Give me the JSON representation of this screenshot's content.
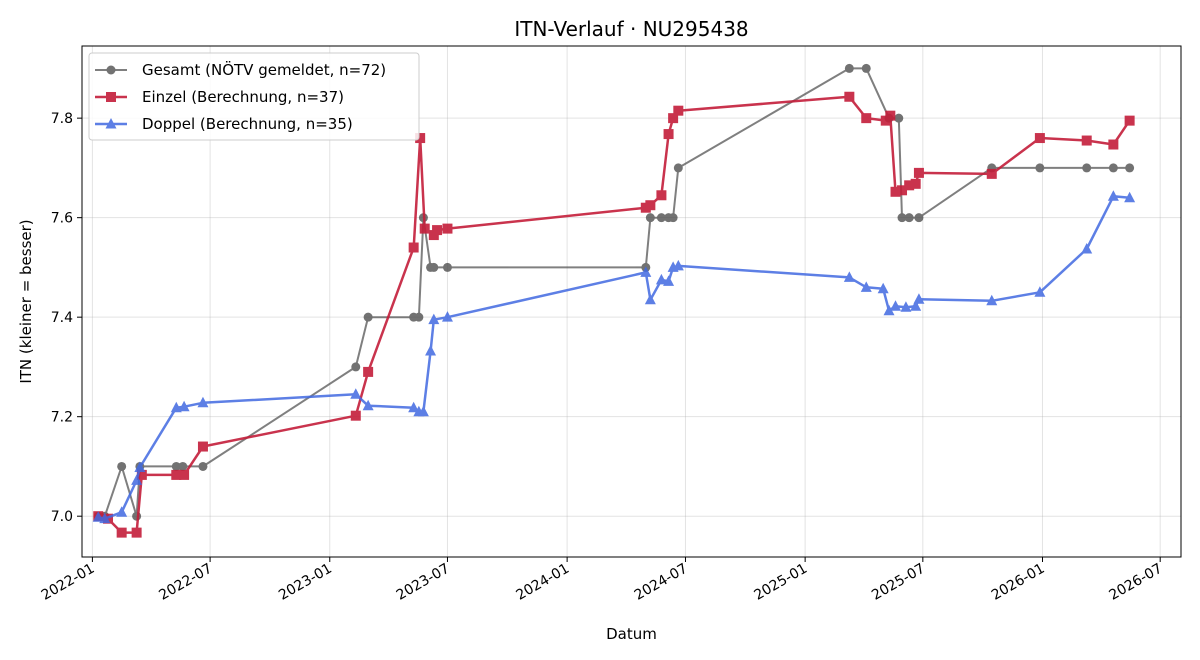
{
  "chart_data": {
    "type": "line",
    "title": "ITN-Verlauf · NU295438",
    "xlabel": "Datum",
    "ylabel": "ITN  (kleiner = besser)",
    "x_ticks": [
      "2022-01",
      "2022-07",
      "2023-01",
      "2023-07",
      "2024-01",
      "2024-07",
      "2025-01",
      "2025-07",
      "2026-01",
      "2026-07"
    ],
    "y_ticks": [
      "7.0",
      "7.2",
      "7.4",
      "7.6",
      "7.8"
    ],
    "xlim": [
      "2021-12-16",
      "2026-08-02"
    ],
    "ylim": [
      6.918,
      7.945
    ],
    "grid": true,
    "legend_position": "top-left",
    "series": [
      {
        "name": "Gesamt (NÖTV gemeldet, n=72)",
        "color": "#555555",
        "marker": "circle",
        "points": [
          [
            "2022-01-10",
            7.0
          ],
          [
            "2022-01-20",
            7.0
          ],
          [
            "2022-02-15",
            7.1
          ],
          [
            "2022-03-10",
            7.0
          ],
          [
            "2022-03-15",
            7.1
          ],
          [
            "2022-05-10",
            7.1
          ],
          [
            "2022-05-20",
            7.1
          ],
          [
            "2022-06-20",
            7.1
          ],
          [
            "2023-02-10",
            7.3
          ],
          [
            "2023-03-01",
            7.4
          ],
          [
            "2023-05-10",
            7.4
          ],
          [
            "2023-05-18",
            7.4
          ],
          [
            "2023-05-25",
            7.6
          ],
          [
            "2023-06-05",
            7.5
          ],
          [
            "2023-06-10",
            7.5
          ],
          [
            "2023-07-01",
            7.5
          ],
          [
            "2024-05-01",
            7.5
          ],
          [
            "2024-05-08",
            7.6
          ],
          [
            "2024-05-25",
            7.6
          ],
          [
            "2024-06-05",
            7.6
          ],
          [
            "2024-06-12",
            7.6
          ],
          [
            "2024-06-20",
            7.7
          ],
          [
            "2025-03-10",
            7.9
          ],
          [
            "2025-04-05",
            7.9
          ],
          [
            "2025-05-10",
            7.8
          ],
          [
            "2025-05-25",
            7.8
          ],
          [
            "2025-05-30",
            7.6
          ],
          [
            "2025-06-10",
            7.6
          ],
          [
            "2025-06-25",
            7.6
          ],
          [
            "2025-10-15",
            7.7
          ],
          [
            "2025-12-28",
            7.7
          ],
          [
            "2026-03-10",
            7.7
          ],
          [
            "2026-04-20",
            7.7
          ],
          [
            "2026-05-15",
            7.7
          ]
        ]
      },
      {
        "name": "Einzel (Berechnung, n=37)",
        "color": "#c41e3a",
        "marker": "square",
        "points": [
          [
            "2022-01-10",
            7.0
          ],
          [
            "2022-01-25",
            6.995
          ],
          [
            "2022-02-15",
            6.967
          ],
          [
            "2022-03-10",
            6.967
          ],
          [
            "2022-03-18",
            7.083
          ],
          [
            "2022-05-10",
            7.083
          ],
          [
            "2022-05-22",
            7.083
          ],
          [
            "2022-06-20",
            7.14
          ],
          [
            "2023-02-10",
            7.202
          ],
          [
            "2023-03-01",
            7.29
          ],
          [
            "2023-05-10",
            7.54
          ],
          [
            "2023-05-20",
            7.76
          ],
          [
            "2023-05-27",
            7.578
          ],
          [
            "2023-06-10",
            7.565
          ],
          [
            "2023-06-15",
            7.575
          ],
          [
            "2023-07-01",
            7.578
          ],
          [
            "2024-05-01",
            7.62
          ],
          [
            "2024-05-08",
            7.625
          ],
          [
            "2024-05-25",
            7.645
          ],
          [
            "2024-06-05",
            7.768
          ],
          [
            "2024-06-12",
            7.8
          ],
          [
            "2024-06-20",
            7.815
          ],
          [
            "2025-03-10",
            7.843
          ],
          [
            "2025-04-05",
            7.8
          ],
          [
            "2025-05-05",
            7.795
          ],
          [
            "2025-05-12",
            7.805
          ],
          [
            "2025-05-20",
            7.652
          ],
          [
            "2025-05-30",
            7.655
          ],
          [
            "2025-06-10",
            7.665
          ],
          [
            "2025-06-20",
            7.668
          ],
          [
            "2025-06-25",
            7.69
          ],
          [
            "2025-10-15",
            7.688
          ],
          [
            "2025-12-28",
            7.76
          ],
          [
            "2026-03-10",
            7.755
          ],
          [
            "2026-04-20",
            7.747
          ],
          [
            "2026-05-15",
            7.795
          ]
        ]
      },
      {
        "name": "Doppel (Berechnung, n=35)",
        "color": "#4169e1",
        "marker": "triangle",
        "points": [
          [
            "2022-01-10",
            6.998
          ],
          [
            "2022-01-20",
            6.995
          ],
          [
            "2022-02-15",
            7.008
          ],
          [
            "2022-03-10",
            7.072
          ],
          [
            "2022-03-15",
            7.098
          ],
          [
            "2022-05-10",
            7.218
          ],
          [
            "2022-05-22",
            7.22
          ],
          [
            "2022-06-20",
            7.228
          ],
          [
            "2023-02-10",
            7.245
          ],
          [
            "2023-03-01",
            7.222
          ],
          [
            "2023-05-10",
            7.218
          ],
          [
            "2023-05-18",
            7.21
          ],
          [
            "2023-05-25",
            7.21
          ],
          [
            "2023-06-05",
            7.332
          ],
          [
            "2023-06-10",
            7.395
          ],
          [
            "2023-07-01",
            7.4
          ],
          [
            "2024-05-01",
            7.49
          ],
          [
            "2024-05-08",
            7.435
          ],
          [
            "2024-05-25",
            7.475
          ],
          [
            "2024-06-05",
            7.472
          ],
          [
            "2024-06-12",
            7.5
          ],
          [
            "2024-06-20",
            7.503
          ],
          [
            "2025-03-10",
            7.48
          ],
          [
            "2025-04-05",
            7.46
          ],
          [
            "2025-05-01",
            7.457
          ],
          [
            "2025-05-10",
            7.413
          ],
          [
            "2025-05-20",
            7.422
          ],
          [
            "2025-06-05",
            7.42
          ],
          [
            "2025-06-20",
            7.422
          ],
          [
            "2025-06-25",
            7.436
          ],
          [
            "2025-10-15",
            7.433
          ],
          [
            "2025-12-28",
            7.45
          ],
          [
            "2026-03-10",
            7.537
          ],
          [
            "2026-04-20",
            7.643
          ],
          [
            "2026-05-15",
            7.64
          ]
        ]
      }
    ]
  }
}
